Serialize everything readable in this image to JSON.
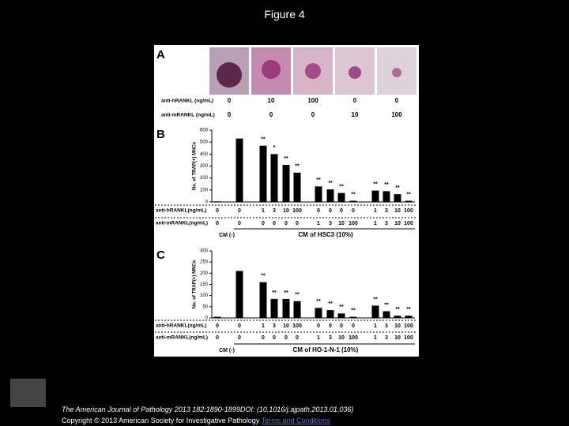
{
  "header": {
    "title": "Figure 4"
  },
  "panel_a": {
    "letter": "A",
    "rows": [
      {
        "label": "anti-hRANKL (ng/mL)",
        "values": [
          "0",
          "10",
          "100",
          "0",
          "0"
        ]
      },
      {
        "label": "anti-mRANKL (ng/mL)",
        "values": [
          "0",
          "0",
          "0",
          "10",
          "100"
        ]
      }
    ]
  },
  "chart_data": [
    {
      "type": "bar",
      "letter": "B",
      "y_label": "No. of TRAP(+) MNCs",
      "color": "#000000",
      "values": [
        5,
        530,
        470,
        400,
        310,
        245,
        130,
        105,
        75,
        10,
        95,
        90,
        65,
        10
      ],
      "significance": [
        null,
        null,
        "**",
        "*",
        "**",
        "**",
        "**",
        "**",
        "**",
        "**",
        "**",
        "**",
        "**",
        "**"
      ],
      "ylim": [
        0,
        600
      ],
      "yticks": [
        0,
        100,
        200,
        300,
        400,
        500,
        600
      ],
      "rows": [
        {
          "label": "anti-hRANKL(ng/mL)",
          "categories": [
            "0",
            "0",
            "1",
            "3",
            "10",
            "100",
            "0",
            "0",
            "0",
            "0",
            "1",
            "3",
            "10",
            "100"
          ]
        },
        {
          "label": "anti-mRANKL(ng/mL)",
          "categories": [
            "0",
            "0",
            "0",
            "0",
            "0",
            "0",
            "1",
            "3",
            "10",
            "100",
            "1",
            "3",
            "10",
            "100"
          ]
        }
      ],
      "groups": [
        "CM (-)",
        "CM of HSC3 (10%)"
      ]
    },
    {
      "type": "bar",
      "letter": "C",
      "y_label": "No. of TRAP(+) MNCs",
      "color": "#000000",
      "values": [
        5,
        210,
        160,
        85,
        85,
        75,
        45,
        35,
        20,
        5,
        55,
        30,
        10,
        10
      ],
      "significance": [
        null,
        null,
        "**",
        "**",
        "**",
        "**",
        "**",
        "**",
        "**",
        "**",
        "**",
        "**",
        "**",
        "**"
      ],
      "ylim": [
        0,
        300
      ],
      "yticks": [
        0,
        50,
        100,
        150,
        200,
        250,
        300
      ],
      "rows": [
        {
          "label": "anti-hRANKL(ng/mL)",
          "categories": [
            "0",
            "0",
            "1",
            "3",
            "10",
            "100",
            "0",
            "0",
            "0",
            "0",
            "1",
            "3",
            "10",
            "100"
          ]
        },
        {
          "label": "anti-mRANKL(ng/mL)",
          "categories": [
            "0",
            "0",
            "0",
            "0",
            "0",
            "0",
            "1",
            "3",
            "10",
            "100",
            "1",
            "3",
            "10",
            "100"
          ]
        }
      ],
      "groups": [
        "CM (-)",
        "CM of HO-1-N-1 (10%)"
      ]
    }
  ],
  "footer": {
    "citation": "The American Journal of Pathology 2013 182:1890-1899DOI: (10.1016/j.ajpath.2013.01.036)",
    "copyright": "Copyright © 2013 American Society for Investigative Pathology",
    "link": "Terms and Conditions"
  }
}
